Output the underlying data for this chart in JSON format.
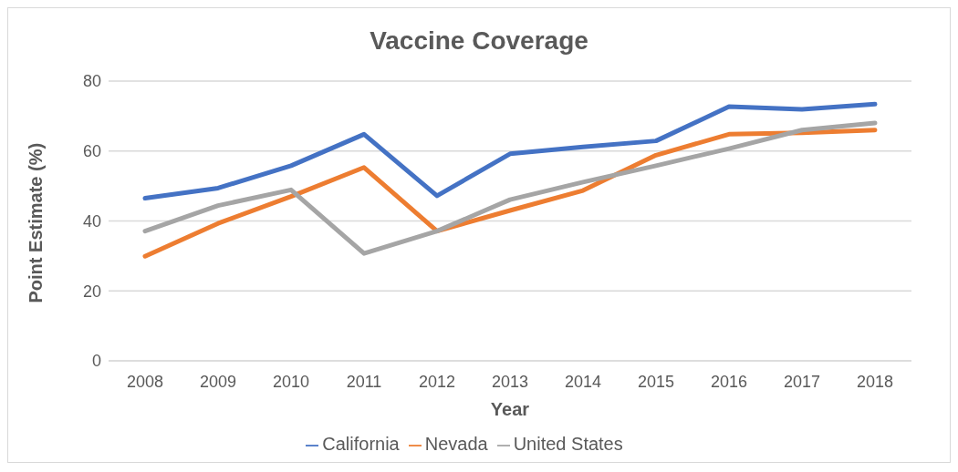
{
  "chart_data": {
    "type": "line",
    "title": "Vaccine Coverage",
    "xlabel": "Year",
    "ylabel": "Point Estimate (%)",
    "categories": [
      "2008",
      "2009",
      "2010",
      "2011",
      "2012",
      "2013",
      "2014",
      "2015",
      "2016",
      "2017",
      "2018"
    ],
    "series": [
      {
        "name": "California",
        "color": "#4472c4",
        "values": [
          46.5,
          49.4,
          55.8,
          64.8,
          47.2,
          59.2,
          61.2,
          62.9,
          72.7,
          71.9,
          73.4
        ]
      },
      {
        "name": "Nevada",
        "color": "#ed7d31",
        "values": [
          29.9,
          39.3,
          47,
          55.3,
          37.1,
          43,
          48.7,
          58.8,
          64.8,
          65.2,
          66
        ]
      },
      {
        "name": "United States",
        "color": "#a5a5a5",
        "values": [
          37.1,
          44.4,
          48.9,
          30.7,
          37.1,
          46.1,
          51.1,
          55.8,
          60.7,
          66,
          68
        ]
      }
    ],
    "ylim": [
      0,
      80
    ],
    "yticks": [
      0,
      20,
      40,
      60,
      80
    ],
    "grid": "y",
    "legend": "bottom",
    "marker": "none",
    "line_style": "solid"
  }
}
